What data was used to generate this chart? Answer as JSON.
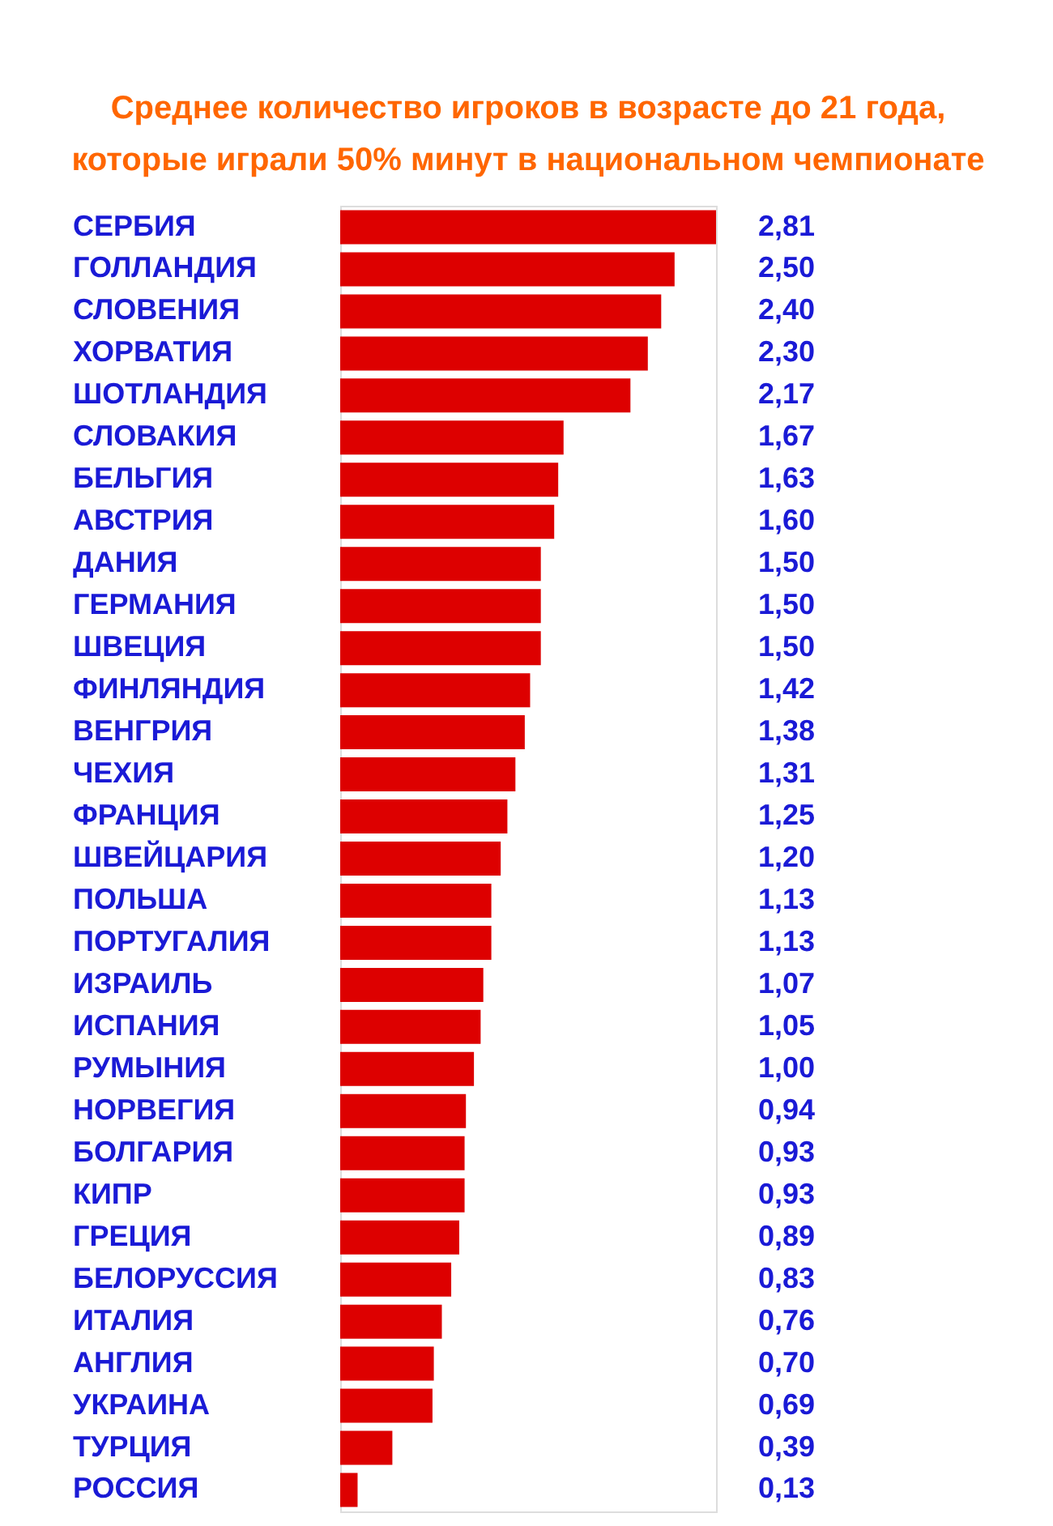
{
  "chart_data": {
    "type": "bar",
    "orientation": "horizontal",
    "title": "Среднее количество игроков в возрасте до 21 года,\nкоторые играли 50% минут в национальном чемпионате",
    "categories": [
      "СЕРБИЯ",
      "ГОЛЛАНДИЯ",
      "СЛОВЕНИЯ",
      "ХОРВАТИЯ",
      "ШОТЛАНДИЯ",
      "СЛОВАКИЯ",
      "БЕЛЬГИЯ",
      "АВСТРИЯ",
      "ДАНИЯ",
      "ГЕРМАНИЯ",
      "ШВЕЦИЯ",
      "ФИНЛЯНДИЯ",
      "ВЕНГРИЯ",
      "ЧЕХИЯ",
      "ФРАНЦИЯ",
      "ШВЕЙЦАРИЯ",
      "ПОЛЬША",
      "ПОРТУГАЛИЯ",
      "ИЗРАИЛЬ",
      "ИСПАНИЯ",
      "РУМЫНИЯ",
      "НОРВЕГИЯ",
      "БОЛГАРИЯ",
      "КИПР",
      "ГРЕЦИЯ",
      "БЕЛОРУССИЯ",
      "ИТАЛИЯ",
      "АНГЛИЯ",
      "УКРАИНА",
      "ТУРЦИЯ",
      "РОССИЯ"
    ],
    "values": [
      2.81,
      2.5,
      2.4,
      2.3,
      2.17,
      1.67,
      1.63,
      1.6,
      1.5,
      1.5,
      1.5,
      1.42,
      1.38,
      1.31,
      1.25,
      1.2,
      1.13,
      1.13,
      1.07,
      1.05,
      1.0,
      0.94,
      0.93,
      0.93,
      0.89,
      0.83,
      0.76,
      0.7,
      0.69,
      0.39,
      0.13
    ],
    "value_labels": [
      "2,81",
      "2,50",
      "2,40",
      "2,30",
      "2,17",
      "1,67",
      "1,63",
      "1,60",
      "1,50",
      "1,50",
      "1,50",
      "1,42",
      "1,38",
      "1,31",
      "1,25",
      "1,20",
      "1,13",
      "1,13",
      "1,07",
      "1,05",
      "1,00",
      "0,94",
      "0,93",
      "0,93",
      "0,89",
      "0,83",
      "0,76",
      "0,70",
      "0,69",
      "0,39",
      "0,13"
    ],
    "color": "#dd0000"
  }
}
